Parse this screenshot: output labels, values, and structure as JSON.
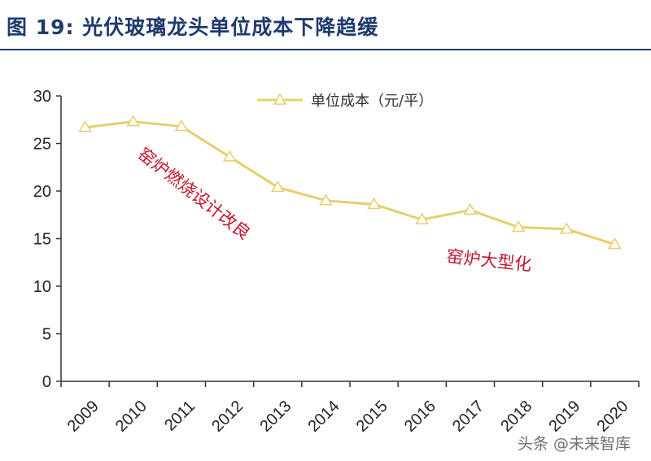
{
  "title": "图 19:  光伏玻璃龙头单位成本下降趋缓",
  "watermark": "头条 @未来智库",
  "chart_data": {
    "type": "line",
    "categories": [
      "2009",
      "2010",
      "2011",
      "2012",
      "2013",
      "2014",
      "2015",
      "2016",
      "2017",
      "2018",
      "2019",
      "2020"
    ],
    "series": [
      {
        "name": "单位成本（元/平）",
        "values": [
          26.7,
          27.3,
          26.8,
          23.6,
          20.4,
          19.0,
          18.6,
          17.0,
          18.0,
          16.2,
          16.0,
          14.4
        ],
        "color": "#e6cf6e",
        "marker": "triangle"
      }
    ],
    "ylim": [
      0,
      30
    ],
    "yticks": [
      "0",
      "5",
      "10",
      "15",
      "20",
      "25",
      "30"
    ],
    "grid": false,
    "legend_position": "top-center",
    "annotations": [
      "窑炉燃烧设计改良",
      "窑炉大型化"
    ],
    "annotation_color": "#c0172b"
  }
}
